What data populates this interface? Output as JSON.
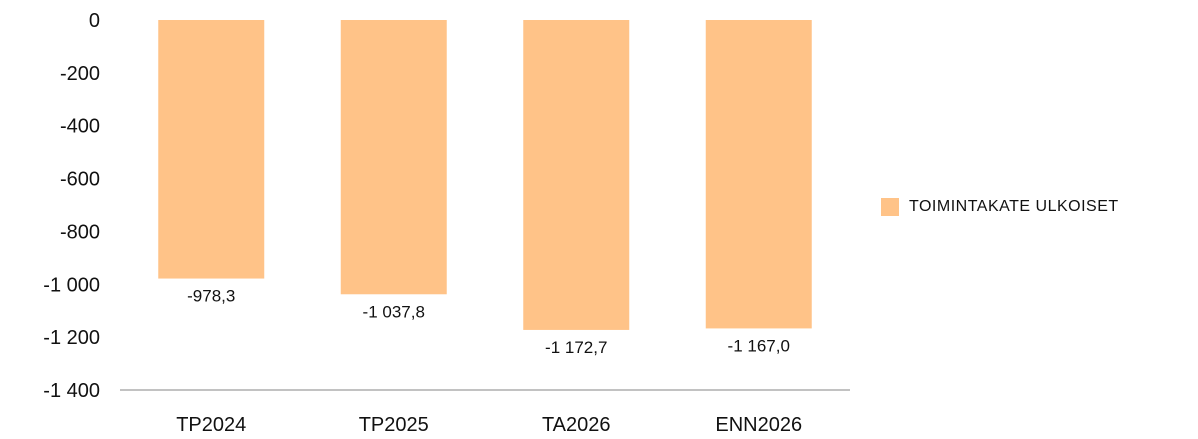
{
  "colors": {
    "bar": "#FFC388",
    "axis_line": "#9E9E9E",
    "text": "#111111"
  },
  "chart_data": {
    "type": "bar",
    "categories": [
      "TP2024",
      "TP2025",
      "TA2026",
      "ENN2026"
    ],
    "series": [
      {
        "name": "TOIMINTAKATE ULKOISET",
        "values": [
          -978.3,
          -1037.8,
          -1172.7,
          -1167.0
        ],
        "labels": [
          "-978,3",
          "-1 037,8",
          "-1 172,7",
          "-1 167,0"
        ]
      }
    ],
    "y_ticks": [
      0,
      -200,
      -400,
      -600,
      -800,
      -1000,
      -1200,
      -1400
    ],
    "y_tick_labels": [
      "0",
      "-200",
      "-400",
      "-600",
      "-800",
      "-1 000",
      "-1 200",
      "-1 400"
    ],
    "ylim": [
      -1400,
      0
    ],
    "title": "",
    "xlabel": "",
    "ylabel": "",
    "grid": false,
    "legend_position": "right"
  }
}
